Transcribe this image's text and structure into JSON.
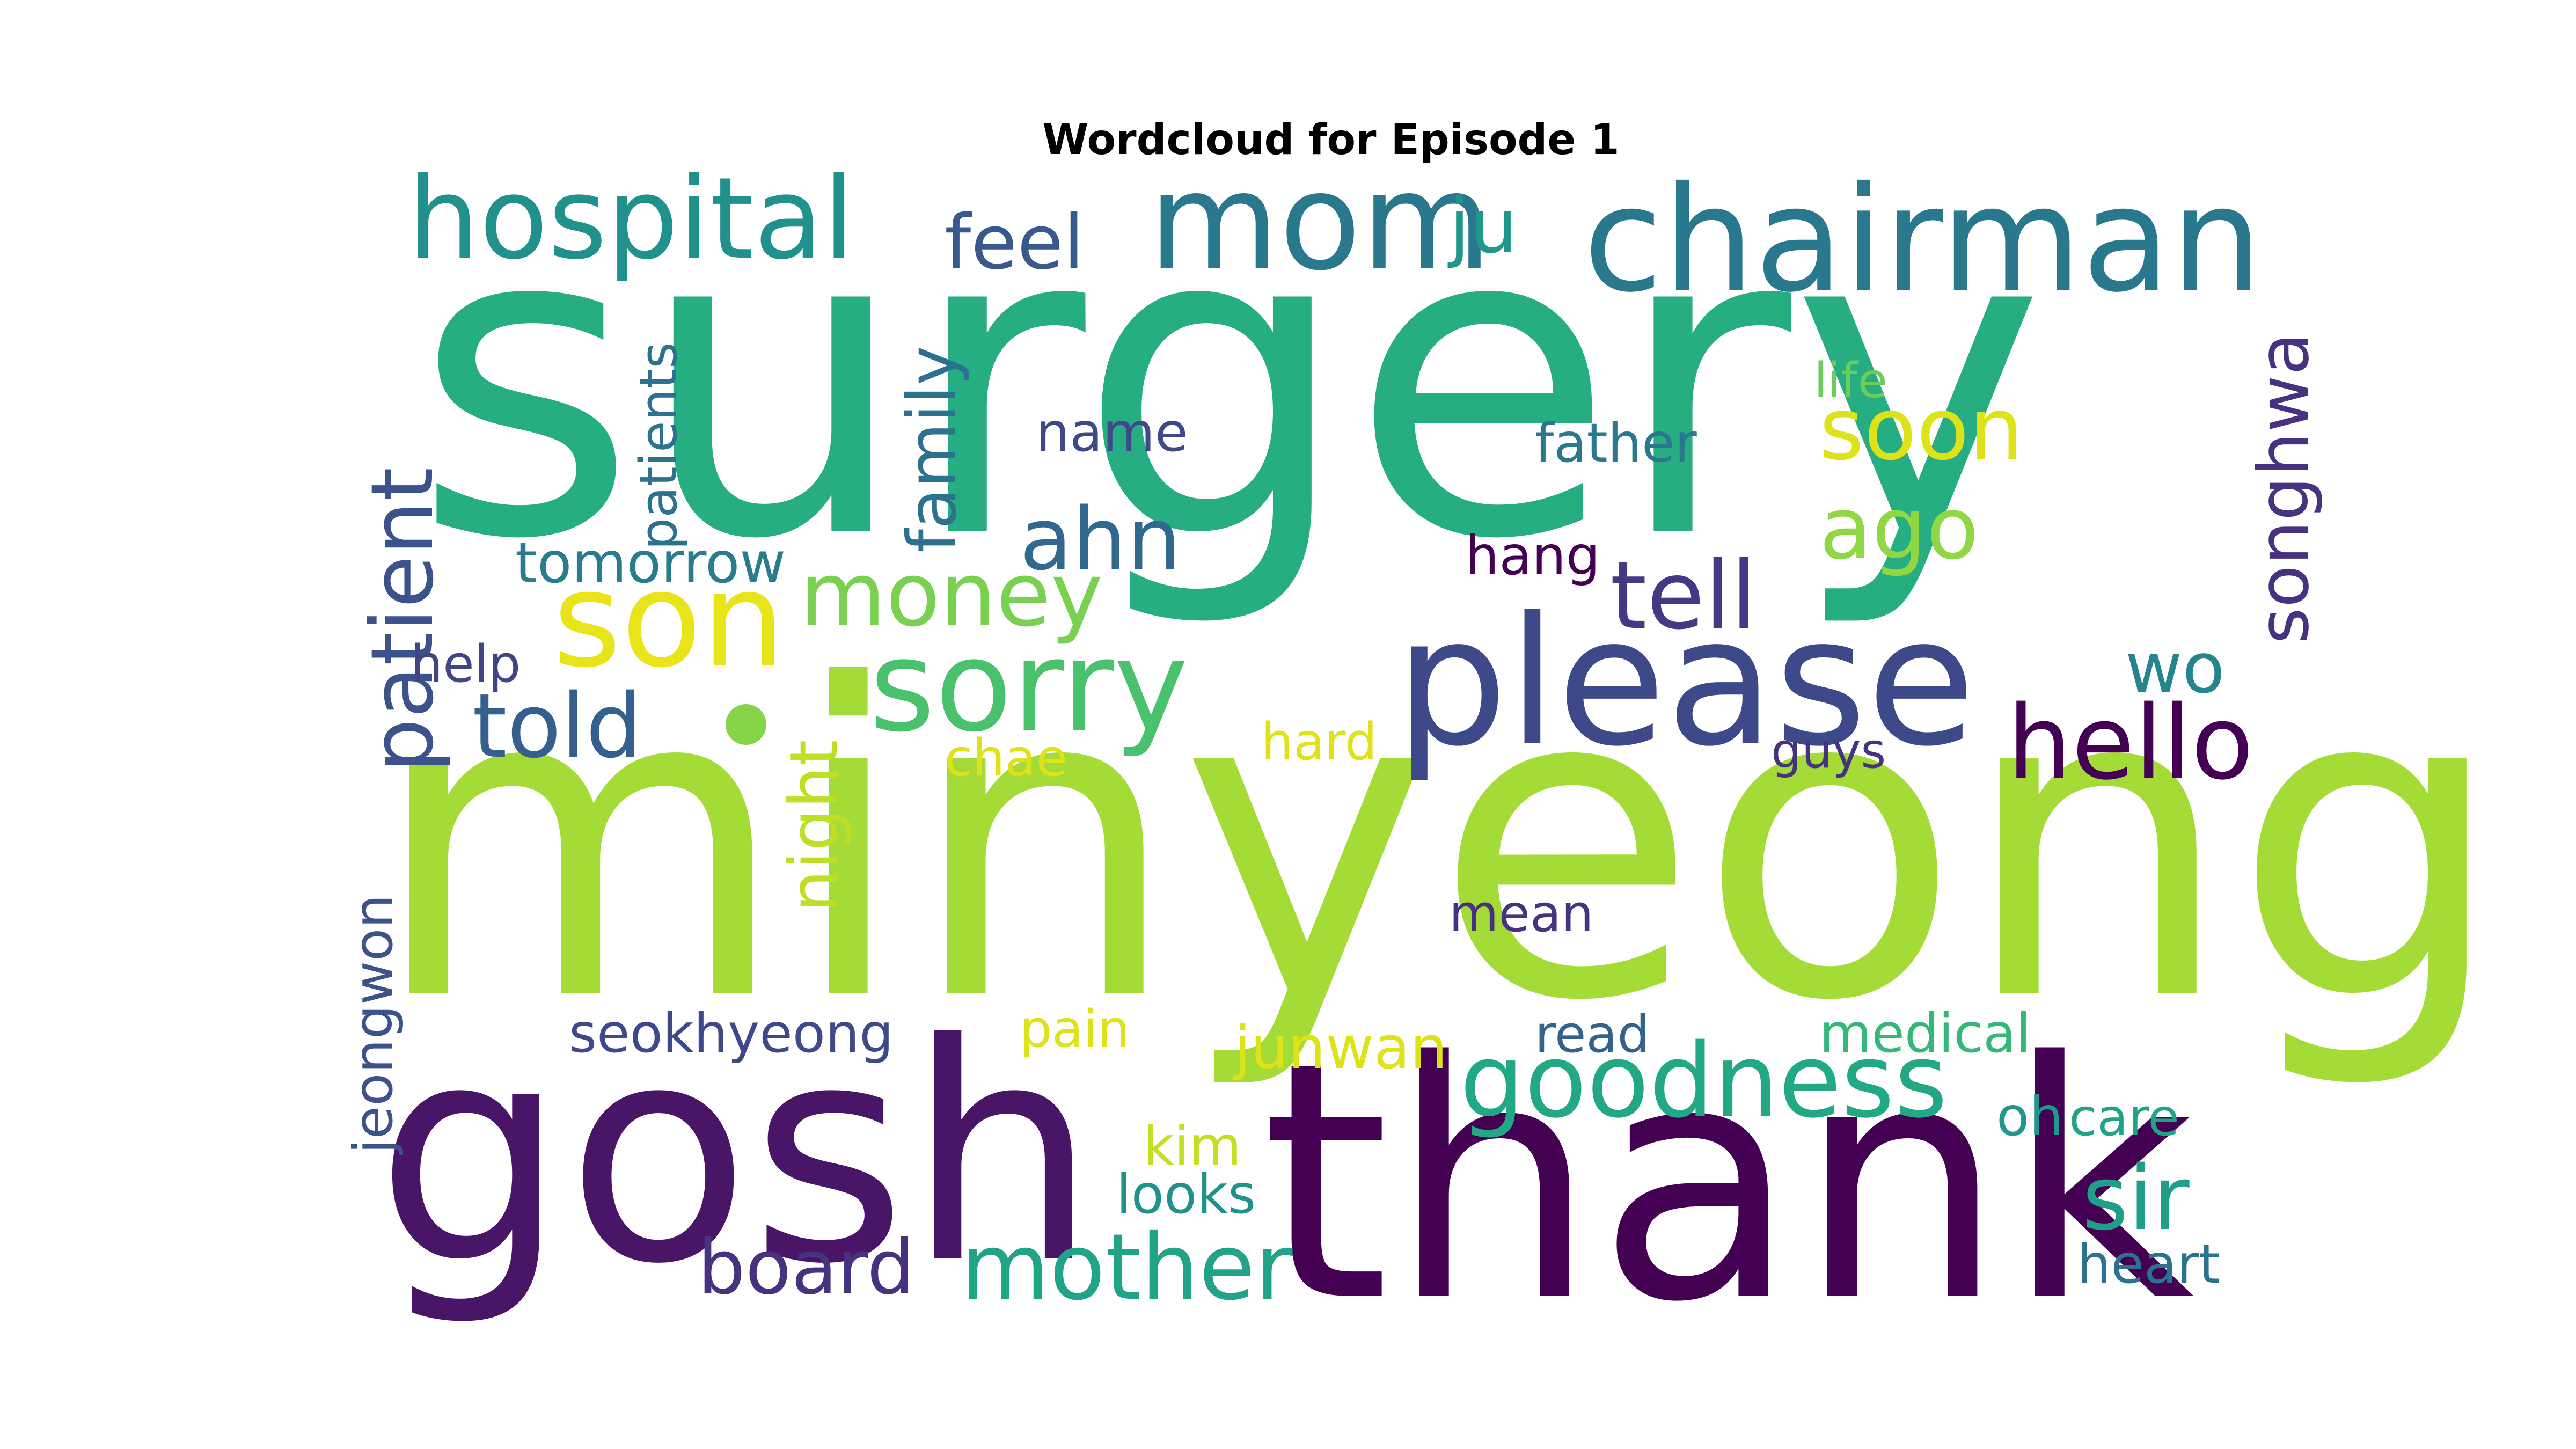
{
  "chart_data": {
    "type": "wordcloud",
    "title": "Wordcloud for Episode 1",
    "words": [
      {
        "text": "surgery",
        "color": "#26ad81"
      },
      {
        "text": "minyeong",
        "color": "#a5db36"
      },
      {
        "text": "thank",
        "color": "#440154"
      },
      {
        "text": "gosh",
        "color": "#481567"
      },
      {
        "text": "please",
        "color": "#3e4989"
      },
      {
        "text": "chairman",
        "color": "#2a788e"
      },
      {
        "text": "mom",
        "color": "#2a788e"
      },
      {
        "text": "hospital",
        "color": "#21918c"
      },
      {
        "text": "son",
        "color": "#e8e419"
      },
      {
        "text": "sorry",
        "color": "#4ac16d"
      },
      {
        "text": "goodness",
        "color": "#22a884"
      },
      {
        "text": "hello",
        "color": "#440154"
      },
      {
        "text": "mother",
        "color": "#20a386"
      },
      {
        "text": "tell",
        "color": "#443983"
      },
      {
        "text": "money",
        "color": "#7ad151"
      },
      {
        "text": "patient",
        "color": "#3b528b"
      },
      {
        "text": "ahn",
        "color": "#31688e"
      },
      {
        "text": "told",
        "color": "#355f8d"
      },
      {
        "text": "sir",
        "color": "#1f9e89"
      },
      {
        "text": "songhwa",
        "color": "#46327e"
      },
      {
        "text": "ago",
        "color": "#8fd744"
      },
      {
        "text": "board",
        "color": "#46327e"
      },
      {
        "text": "soon",
        "color": "#dde318"
      },
      {
        "text": "family",
        "color": "#2c728e"
      },
      {
        "text": "feel",
        "color": "#38598c"
      },
      {
        "text": "ju",
        "color": "#1f988b"
      },
      {
        "text": "night",
        "color": "#bddf26"
      },
      {
        "text": "wo",
        "color": "#25858e"
      },
      {
        "text": "junwan",
        "color": "#dde318"
      },
      {
        "text": "patients",
        "color": "#2c728e"
      },
      {
        "text": "goodness_dot",
        "color": "#86d549"
      },
      {
        "text": "tomorrow",
        "color": "#287c8e"
      },
      {
        "text": "name",
        "color": "#3e4989"
      },
      {
        "text": "father",
        "color": "#2a788e"
      },
      {
        "text": "jeongwon",
        "color": "#3b528b"
      },
      {
        "text": "medical",
        "color": "#35b779"
      },
      {
        "text": "seokhyeong",
        "color": "#3e4989"
      },
      {
        "text": "hang",
        "color": "#440154"
      },
      {
        "text": "heart",
        "color": "#2c728e"
      },
      {
        "text": "looks",
        "color": "#21918c"
      },
      {
        "text": "oh",
        "color": "#1f988b"
      },
      {
        "text": "care",
        "color": "#20a386"
      },
      {
        "text": "pain",
        "color": "#dde318"
      },
      {
        "text": "chae",
        "color": "#dde318"
      },
      {
        "text": "hard",
        "color": "#dde318"
      },
      {
        "text": "mean",
        "color": "#46327e"
      },
      {
        "text": "read",
        "color": "#33638d"
      },
      {
        "text": "life",
        "color": "#6ccd5a"
      },
      {
        "text": "help",
        "color": "#414487"
      },
      {
        "text": "guys",
        "color": "#46327e"
      },
      {
        "text": "kim",
        "color": "#c2df23"
      }
    ]
  }
}
